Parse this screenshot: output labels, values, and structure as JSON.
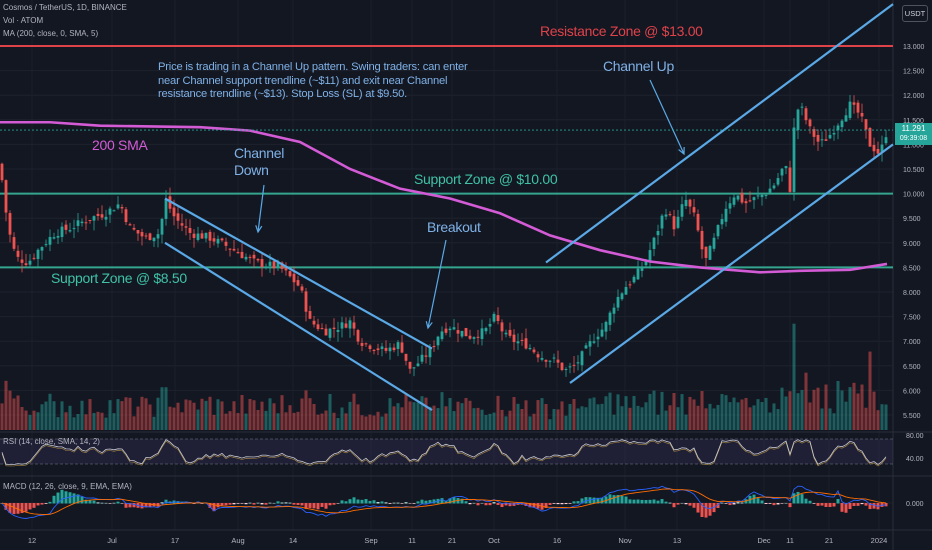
{
  "header": {
    "title": "Cosmos / TetherUS, 1D, BINANCE",
    "vol": "Vol · ATOM",
    "ma": "MA (200, close, 0, SMA, 5)",
    "rsi": "RSI (14, close, SMA, 14, 2)",
    "macd": "MACD (12, 26, close, 9, EMA, EMA)"
  },
  "currency": "USDT",
  "note": "Price is trading in a Channel Up pattern. Swing traders: can enter near Channel support trendline (~$11) and exit near Channel resistance trendline (~$13). Stop Loss (SL) at $9.50.",
  "price_box": {
    "price": "11.291",
    "countdown": "09:39:08"
  },
  "annotations": {
    "resistance": "Resistance Zone @ $13.00",
    "support10": "Support Zone @ $10.00",
    "support85": "Support Zone @ $8.50",
    "sma": "200 SMA",
    "channel_down": [
      "Channel",
      "Down"
    ],
    "breakout": "Breakout",
    "channel_up": "Channel Up"
  },
  "colors": {
    "background": "#131722",
    "up": "#26a69a",
    "down": "#ef5350",
    "sma": "#d45bd6",
    "trendline": "#5aa9e6",
    "resistance": "#e0424a",
    "support": "#34a58f"
  },
  "chart_data": [
    {
      "type": "candlestick",
      "title": "Cosmos / TetherUS, 1D, BINANCE",
      "y_ticks": [
        13.0,
        12.5,
        12.0,
        11.5,
        11.0,
        10.5,
        10.0,
        9.5,
        9.0,
        8.5,
        8.0,
        7.5,
        7.0,
        6.5,
        6.0,
        5.5
      ],
      "x_ticks": [
        "12",
        "Jul",
        "17",
        "Aug",
        "14",
        "Sep",
        "11",
        "21",
        "Oct",
        "16",
        "Nov",
        "13",
        "Dec",
        "11",
        "21",
        "2024"
      ],
      "close_path": [
        [
          0,
          10.6
        ],
        [
          8,
          9.3
        ],
        [
          16,
          8.7
        ],
        [
          28,
          8.6
        ],
        [
          40,
          8.9
        ],
        [
          55,
          9.2
        ],
        [
          70,
          9.3
        ],
        [
          90,
          9.5
        ],
        [
          105,
          9.6
        ],
        [
          120,
          9.8
        ],
        [
          130,
          9.3
        ],
        [
          145,
          9.1
        ],
        [
          160,
          9.2
        ],
        [
          165,
          9.9
        ],
        [
          175,
          9.5
        ],
        [
          190,
          9.2
        ],
        [
          210,
          9.1
        ],
        [
          230,
          8.9
        ],
        [
          255,
          8.6
        ],
        [
          280,
          8.5
        ],
        [
          300,
          8.1
        ],
        [
          310,
          7.4
        ],
        [
          325,
          7.2
        ],
        [
          340,
          7.3
        ],
        [
          350,
          7.4
        ],
        [
          360,
          7.0
        ],
        [
          372,
          6.9
        ],
        [
          385,
          6.8
        ],
        [
          400,
          6.95
        ],
        [
          410,
          6.4
        ],
        [
          420,
          6.6
        ],
        [
          430,
          6.8
        ],
        [
          440,
          7.2
        ],
        [
          450,
          7.3
        ],
        [
          460,
          7.2
        ],
        [
          470,
          7.1
        ],
        [
          485,
          7.2
        ],
        [
          495,
          7.5
        ],
        [
          505,
          7.1
        ],
        [
          515,
          7.0
        ],
        [
          525,
          6.95
        ],
        [
          540,
          6.7
        ],
        [
          555,
          6.6
        ],
        [
          565,
          6.4
        ],
        [
          575,
          6.5
        ],
        [
          585,
          6.8
        ],
        [
          595,
          7.1
        ],
        [
          605,
          7.3
        ],
        [
          615,
          7.8
        ],
        [
          625,
          8.1
        ],
        [
          635,
          8.3
        ],
        [
          645,
          8.6
        ],
        [
          655,
          9.1
        ],
        [
          665,
          9.7
        ],
        [
          675,
          9.3
        ],
        [
          685,
          9.9
        ],
        [
          695,
          9.5
        ],
        [
          705,
          8.6
        ],
        [
          715,
          9.1
        ],
        [
          725,
          9.7
        ],
        [
          735,
          10.0
        ],
        [
          745,
          9.8
        ],
        [
          755,
          9.9
        ],
        [
          765,
          10.0
        ],
        [
          775,
          10.2
        ],
        [
          785,
          10.6
        ],
        [
          790,
          10.1
        ],
        [
          795,
          11.6
        ],
        [
          800,
          11.8
        ],
        [
          810,
          11.3
        ],
        [
          820,
          11.0
        ],
        [
          830,
          11.2
        ],
        [
          840,
          11.5
        ],
        [
          850,
          11.8
        ],
        [
          860,
          11.6
        ],
        [
          870,
          11.0
        ],
        [
          880,
          10.8
        ],
        [
          887,
          11.29
        ]
      ],
      "last_price": 11.291
    },
    {
      "type": "line",
      "name": "200 SMA",
      "points": [
        [
          0,
          11.45
        ],
        [
          50,
          11.45
        ],
        [
          100,
          11.38
        ],
        [
          200,
          11.35
        ],
        [
          250,
          11.28
        ],
        [
          300,
          11.05
        ],
        [
          350,
          10.5
        ],
        [
          400,
          10.1
        ],
        [
          450,
          9.9
        ],
        [
          500,
          9.6
        ],
        [
          550,
          9.15
        ],
        [
          600,
          8.85
        ],
        [
          650,
          8.62
        ],
        [
          700,
          8.5
        ],
        [
          760,
          8.4
        ],
        [
          800,
          8.43
        ],
        [
          850,
          8.45
        ],
        [
          887,
          8.57
        ]
      ]
    },
    {
      "type": "horizontal_levels",
      "levels": [
        {
          "name": "Resistance Zone @ $13.00",
          "value": 13.0
        },
        {
          "name": "Support Zone @ $10.00",
          "value": 10.0
        },
        {
          "name": "Support Zone @ $8.50",
          "value": 8.5
        }
      ]
    },
    {
      "type": "trendlines",
      "channel_down": {
        "upper": [
          [
            165,
            9.9
          ],
          [
            432,
            6.85
          ]
        ],
        "lower": [
          [
            165,
            9.0
          ],
          [
            432,
            5.6
          ]
        ]
      },
      "channel_up": {
        "upper": [
          [
            546,
            8.6
          ],
          [
            893,
            13.85
          ]
        ],
        "lower": [
          [
            570,
            6.15
          ],
          [
            893,
            11.0
          ]
        ]
      }
    },
    {
      "type": "bar",
      "name": "Vol · ATOM",
      "values": "generated-from-price"
    },
    {
      "type": "line",
      "name": "RSI (14, close, SMA, 14, 2)",
      "y_ticks": [
        80.0,
        40.0
      ]
    },
    {
      "type": "histogram",
      "name": "MACD (12, 26, close, 9, EMA, EMA)",
      "y_ticks": [
        0.0
      ]
    }
  ]
}
